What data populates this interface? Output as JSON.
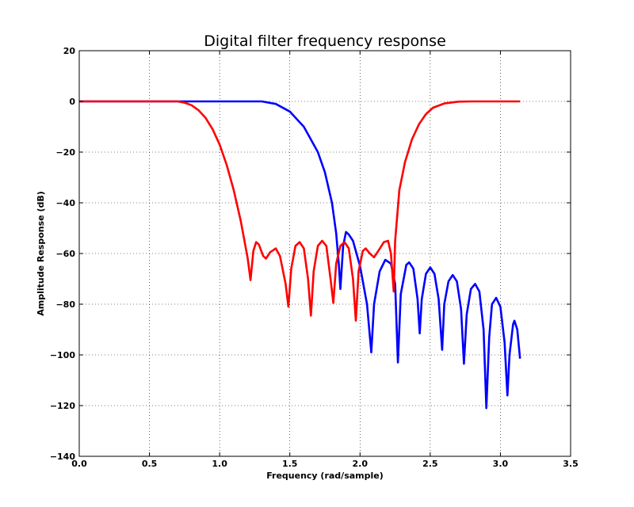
{
  "chart_data": {
    "type": "line",
    "title": "Digital filter frequency response",
    "xlabel": "Frequency (rad/sample)",
    "ylabel": "Amplitude Response (dB)",
    "xlim": [
      0.0,
      3.5
    ],
    "ylim": [
      -140,
      20
    ],
    "xticks": [
      0.0,
      0.5,
      1.0,
      1.5,
      2.0,
      2.5,
      3.0,
      3.5
    ],
    "xtick_labels": [
      "0.0",
      "0.5",
      "1.0",
      "1.5",
      "2.0",
      "2.5",
      "3.0",
      "3.5"
    ],
    "yticks": [
      20,
      0,
      -20,
      -40,
      -60,
      -80,
      -100,
      -120,
      -140
    ],
    "ytick_labels": [
      "20",
      "0",
      "−20",
      "−40",
      "−60",
      "−80",
      "−100",
      "−120",
      "−140"
    ],
    "grid": true,
    "series": [
      {
        "color": "#0000ff",
        "points": [
          [
            0.0,
            0
          ],
          [
            1.3,
            0
          ],
          [
            1.4,
            -1
          ],
          [
            1.5,
            -4
          ],
          [
            1.6,
            -10
          ],
          [
            1.7,
            -20
          ],
          [
            1.75,
            -28
          ],
          [
            1.8,
            -40
          ],
          [
            1.83,
            -52
          ],
          [
            1.85,
            -65
          ],
          [
            1.86,
            -74
          ],
          [
            1.88,
            -57
          ],
          [
            1.9,
            -51.5
          ],
          [
            1.92,
            -52.5
          ],
          [
            1.95,
            -55
          ],
          [
            2.0,
            -65
          ],
          [
            2.05,
            -80
          ],
          [
            2.08,
            -99
          ],
          [
            2.1,
            -80
          ],
          [
            2.14,
            -67
          ],
          [
            2.18,
            -62.5
          ],
          [
            2.22,
            -64
          ],
          [
            2.25,
            -72
          ],
          [
            2.27,
            -103
          ],
          [
            2.29,
            -76
          ],
          [
            2.33,
            -64.5
          ],
          [
            2.35,
            -63.5
          ],
          [
            2.38,
            -66
          ],
          [
            2.41,
            -78
          ],
          [
            2.425,
            -91.5
          ],
          [
            2.44,
            -78
          ],
          [
            2.47,
            -68
          ],
          [
            2.5,
            -65.5
          ],
          [
            2.53,
            -68
          ],
          [
            2.56,
            -78
          ],
          [
            2.585,
            -98
          ],
          [
            2.6,
            -80
          ],
          [
            2.63,
            -71
          ],
          [
            2.66,
            -68.5
          ],
          [
            2.69,
            -71
          ],
          [
            2.72,
            -82
          ],
          [
            2.74,
            -103.5
          ],
          [
            2.76,
            -84
          ],
          [
            2.79,
            -74
          ],
          [
            2.82,
            -72
          ],
          [
            2.85,
            -75
          ],
          [
            2.88,
            -90
          ],
          [
            2.9,
            -121
          ],
          [
            2.92,
            -93
          ],
          [
            2.94,
            -80
          ],
          [
            2.97,
            -77.5
          ],
          [
            3.0,
            -81
          ],
          [
            3.03,
            -95
          ],
          [
            3.05,
            -116
          ],
          [
            3.065,
            -100
          ],
          [
            3.09,
            -88
          ],
          [
            3.1,
            -86.5
          ],
          [
            3.12,
            -90
          ],
          [
            3.14,
            -101.5
          ]
        ]
      },
      {
        "color": "#ff0000",
        "points": [
          [
            0.0,
            0
          ],
          [
            0.7,
            0
          ],
          [
            0.75,
            -0.5
          ],
          [
            0.8,
            -1.5
          ],
          [
            0.85,
            -3.5
          ],
          [
            0.9,
            -6.5
          ],
          [
            0.95,
            -11
          ],
          [
            1.0,
            -17
          ],
          [
            1.05,
            -25
          ],
          [
            1.1,
            -35
          ],
          [
            1.15,
            -47
          ],
          [
            1.2,
            -62
          ],
          [
            1.22,
            -70.5
          ],
          [
            1.24,
            -59
          ],
          [
            1.26,
            -55.5
          ],
          [
            1.28,
            -56.5
          ],
          [
            1.31,
            -61
          ],
          [
            1.33,
            -62
          ],
          [
            1.36,
            -59.5
          ],
          [
            1.4,
            -58
          ],
          [
            1.43,
            -61
          ],
          [
            1.47,
            -72
          ],
          [
            1.49,
            -81
          ],
          [
            1.51,
            -66
          ],
          [
            1.54,
            -57
          ],
          [
            1.57,
            -55.5
          ],
          [
            1.6,
            -58
          ],
          [
            1.63,
            -70
          ],
          [
            1.65,
            -84.5
          ],
          [
            1.67,
            -67
          ],
          [
            1.7,
            -57
          ],
          [
            1.73,
            -55
          ],
          [
            1.76,
            -57
          ],
          [
            1.79,
            -70
          ],
          [
            1.81,
            -79.5
          ],
          [
            1.83,
            -64
          ],
          [
            1.86,
            -57
          ],
          [
            1.89,
            -55.5
          ],
          [
            1.92,
            -58
          ],
          [
            1.95,
            -70
          ],
          [
            1.97,
            -86.5
          ],
          [
            1.99,
            -67
          ],
          [
            2.02,
            -59
          ],
          [
            2.04,
            -58
          ],
          [
            2.07,
            -60
          ],
          [
            2.1,
            -61.5
          ],
          [
            2.13,
            -59
          ],
          [
            2.17,
            -55.5
          ],
          [
            2.2,
            -55
          ],
          [
            2.22,
            -60
          ],
          [
            2.24,
            -75
          ],
          [
            2.25,
            -55
          ],
          [
            2.28,
            -35
          ],
          [
            2.32,
            -24
          ],
          [
            2.37,
            -15
          ],
          [
            2.42,
            -9
          ],
          [
            2.47,
            -5
          ],
          [
            2.52,
            -2.5
          ],
          [
            2.6,
            -0.8
          ],
          [
            2.7,
            -0.1
          ],
          [
            2.8,
            0
          ],
          [
            3.14,
            0
          ]
        ]
      }
    ]
  }
}
